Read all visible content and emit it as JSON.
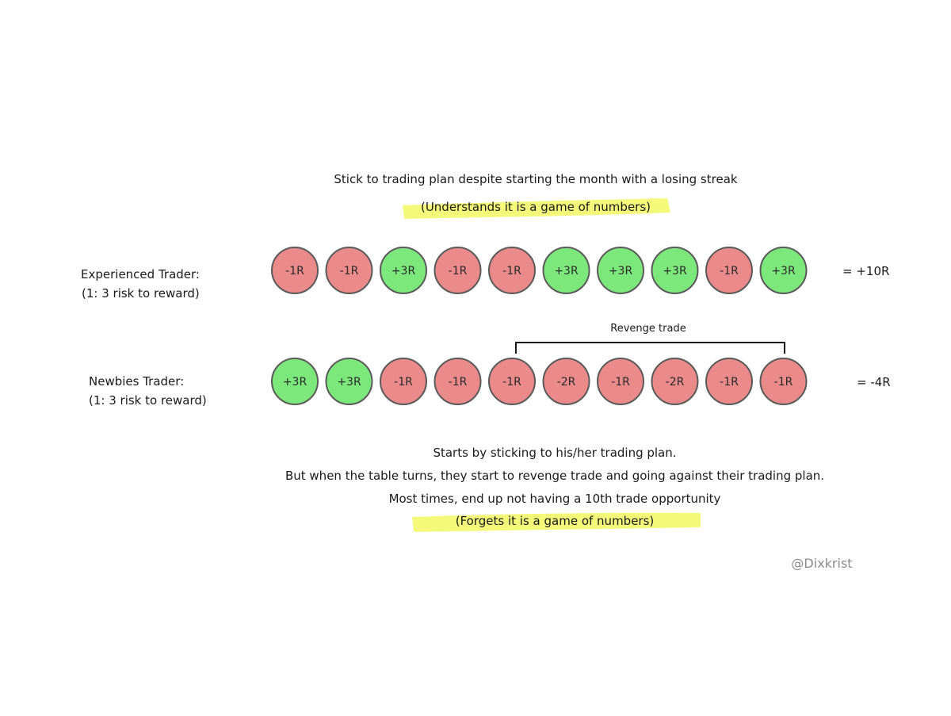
{
  "top_title": "Stick to trading plan despite starting the month with a losing streak",
  "top_highlight": "(Understands it is a game of numbers)",
  "experienced": {
    "name": "Experienced Trader:",
    "ratio": "(1: 3 risk to reward)",
    "trades": [
      "-1R",
      "-1R",
      "+3R",
      "-1R",
      "-1R",
      "+3R",
      "+3R",
      "+3R",
      "-1R",
      "+3R"
    ],
    "total": "= +10R"
  },
  "revenge_label": "Revenge trade",
  "newbie": {
    "name": "Newbies Trader:",
    "ratio": "(1: 3 risk to reward)",
    "trades": [
      "+3R",
      "+3R",
      "-1R",
      "-1R",
      "-1R",
      "-2R",
      "-1R",
      "-2R",
      "-1R",
      "-1R"
    ],
    "total": "= -4R"
  },
  "bottom_lines": [
    "Starts by sticking to his/her trading plan.",
    "But when the table turns, they start to revenge trade and going against their trading plan.",
    "Most times, end up not having a 10th trade opportunity"
  ],
  "bottom_highlight": "(Forgets it is a game of numbers)",
  "watermark": "@Dixkrist",
  "colors": {
    "win": "#7ce87c",
    "loss": "#ea8a8a",
    "highlight": "#f3f86a",
    "ring": "#5a5a5a"
  }
}
